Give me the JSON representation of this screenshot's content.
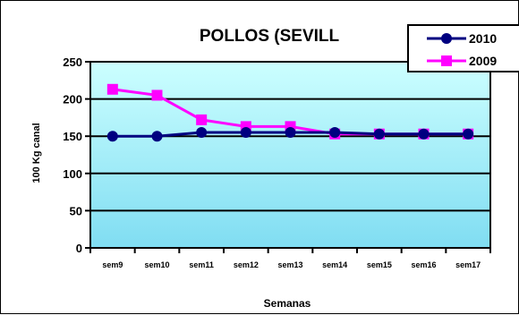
{
  "chart_data": {
    "type": "line",
    "title": "POLLOS (SEVILL",
    "xlabel": "Semanas",
    "ylabel": "100 Kg canal",
    "categories": [
      "sem9",
      "sem10",
      "sem11",
      "sem12",
      "sem13",
      "sem14",
      "sem15",
      "sem16",
      "sem17"
    ],
    "ylim": [
      0,
      250
    ],
    "yticks": [
      0,
      50,
      100,
      150,
      200,
      250
    ],
    "grid": true,
    "legend_position": "top-right",
    "series": [
      {
        "name": "2010",
        "color": "#000080",
        "marker": "circle",
        "values": [
          150,
          150,
          155,
          155,
          155,
          155,
          153,
          153,
          153
        ]
      },
      {
        "name": "2009",
        "color": "#FF00FF",
        "marker": "square",
        "values": [
          213,
          205,
          172,
          163,
          163,
          153,
          153,
          153,
          153
        ]
      }
    ],
    "plot_background_top": "#CCFFFF",
    "plot_background_bottom": "#80DDF2"
  }
}
